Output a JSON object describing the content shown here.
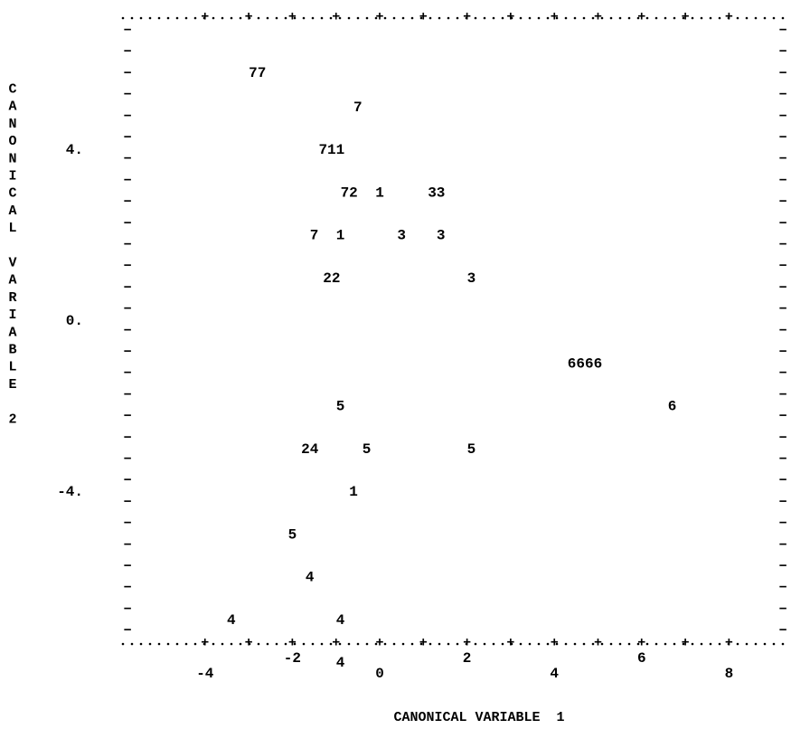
{
  "chart_data": {
    "type": "scatter",
    "xlabel": "CANONICAL VARIABLE  1",
    "ylabel": "CANONICAL VARIABLE 2",
    "xlim": [
      -5,
      9
    ],
    "ylim": [
      -8,
      10
    ],
    "x_ticks": [
      -4,
      -2,
      0,
      2,
      4,
      6,
      8
    ],
    "x_tick_labels": [
      "-4",
      "-2",
      "0",
      "2",
      "4",
      "6",
      "8"
    ],
    "y_ticks": [
      4,
      0,
      -4
    ],
    "y_tick_labels": [
      "4.",
      "0.",
      "-4."
    ],
    "grid": false,
    "legend": "none",
    "points": [
      {
        "label": "77",
        "x": -2.8,
        "y": 5.8
      },
      {
        "label": "7",
        "x": -0.5,
        "y": 5.0
      },
      {
        "label": "711",
        "x": -1.1,
        "y": 4.0
      },
      {
        "label": "72",
        "x": -0.7,
        "y": 3.0
      },
      {
        "label": "1",
        "x": 0.0,
        "y": 3.0
      },
      {
        "label": "33",
        "x": 1.3,
        "y": 3.0
      },
      {
        "label": "7",
        "x": -1.5,
        "y": 2.0
      },
      {
        "label": "1",
        "x": -0.9,
        "y": 2.0
      },
      {
        "label": "3",
        "x": 0.5,
        "y": 2.0
      },
      {
        "label": "3",
        "x": 1.4,
        "y": 2.0
      },
      {
        "label": "22",
        "x": -1.1,
        "y": 1.0
      },
      {
        "label": "3",
        "x": 2.1,
        "y": 1.0
      },
      {
        "label": "6666",
        "x": 4.7,
        "y": -1.0
      },
      {
        "label": "5",
        "x": -0.9,
        "y": -2.0
      },
      {
        "label": "6",
        "x": 6.7,
        "y": -2.0
      },
      {
        "label": "24",
        "x": -1.6,
        "y": -3.0
      },
      {
        "label": "5",
        "x": -0.3,
        "y": -3.0
      },
      {
        "label": "5",
        "x": 2.1,
        "y": -3.0
      },
      {
        "label": "1",
        "x": -0.6,
        "y": -4.0
      },
      {
        "label": "5",
        "x": -2.0,
        "y": -5.0
      },
      {
        "label": "4",
        "x": -1.6,
        "y": -6.0
      },
      {
        "label": "4",
        "x": -3.4,
        "y": -7.0
      },
      {
        "label": "4",
        "x": -0.9,
        "y": -7.0
      },
      {
        "label": "4",
        "x": -0.9,
        "y": -8.0
      }
    ]
  }
}
